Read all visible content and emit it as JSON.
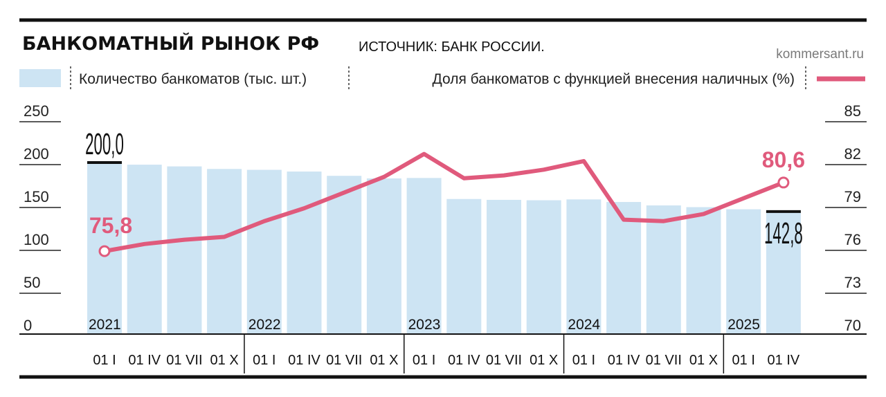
{
  "title": "БАНКОМАТНЫЙ РЫНОК РФ",
  "source": "ИСТОЧНИК: БАНК РОССИИ.",
  "site": "kommersant.ru",
  "colors": {
    "bar": "#cde4f3",
    "line": "#e05a7c",
    "text": "#111111",
    "muted": "#7a7a7a"
  },
  "chart_data": {
    "type": "bar",
    "categories": [
      "01 I",
      "01 IV",
      "01 VII",
      "01 X",
      "01 I",
      "01 IV",
      "01 VII",
      "01 X",
      "01 I",
      "01 IV",
      "01 VII",
      "01 X",
      "01 I",
      "01 IV",
      "01 VII",
      "01 X",
      "01 I",
      "01 IV"
    ],
    "years": [
      {
        "label": "2021",
        "start_index": 0
      },
      {
        "label": "2022",
        "start_index": 4
      },
      {
        "label": "2023",
        "start_index": 8
      },
      {
        "label": "2024",
        "start_index": 12
      },
      {
        "label": "2025",
        "start_index": 16
      }
    ],
    "series": [
      {
        "name": "Количество банкоматов (тыс. шт.)",
        "type": "bar",
        "axis": "left",
        "values": [
          200.0,
          197.5,
          195.5,
          192.5,
          191.5,
          189.5,
          184.5,
          181.5,
          182.0,
          157.5,
          156.5,
          156.0,
          157.0,
          154.0,
          150.0,
          148.0,
          145.5,
          142.8
        ]
      },
      {
        "name": "Доля банкоматов с функцией внесения наличных (%)",
        "type": "line",
        "axis": "right",
        "values": [
          75.8,
          76.3,
          76.6,
          76.8,
          77.9,
          78.8,
          79.9,
          81.0,
          82.6,
          80.9,
          81.1,
          81.5,
          82.1,
          78.0,
          77.9,
          78.4,
          79.5,
          80.6
        ]
      }
    ],
    "value_labels": {
      "bar_first": "200,0",
      "bar_last": "142,8",
      "line_first": "75,8",
      "line_last": "80,6"
    },
    "left_axis": {
      "ylim": [
        0,
        250
      ],
      "ticks": [
        "0",
        "50",
        "100",
        "150",
        "200",
        "250"
      ]
    },
    "right_axis": {
      "ylim": [
        70,
        85
      ],
      "ticks": [
        "70",
        "73",
        "76",
        "79",
        "82",
        "85"
      ]
    },
    "grid": false,
    "legend": "top"
  }
}
